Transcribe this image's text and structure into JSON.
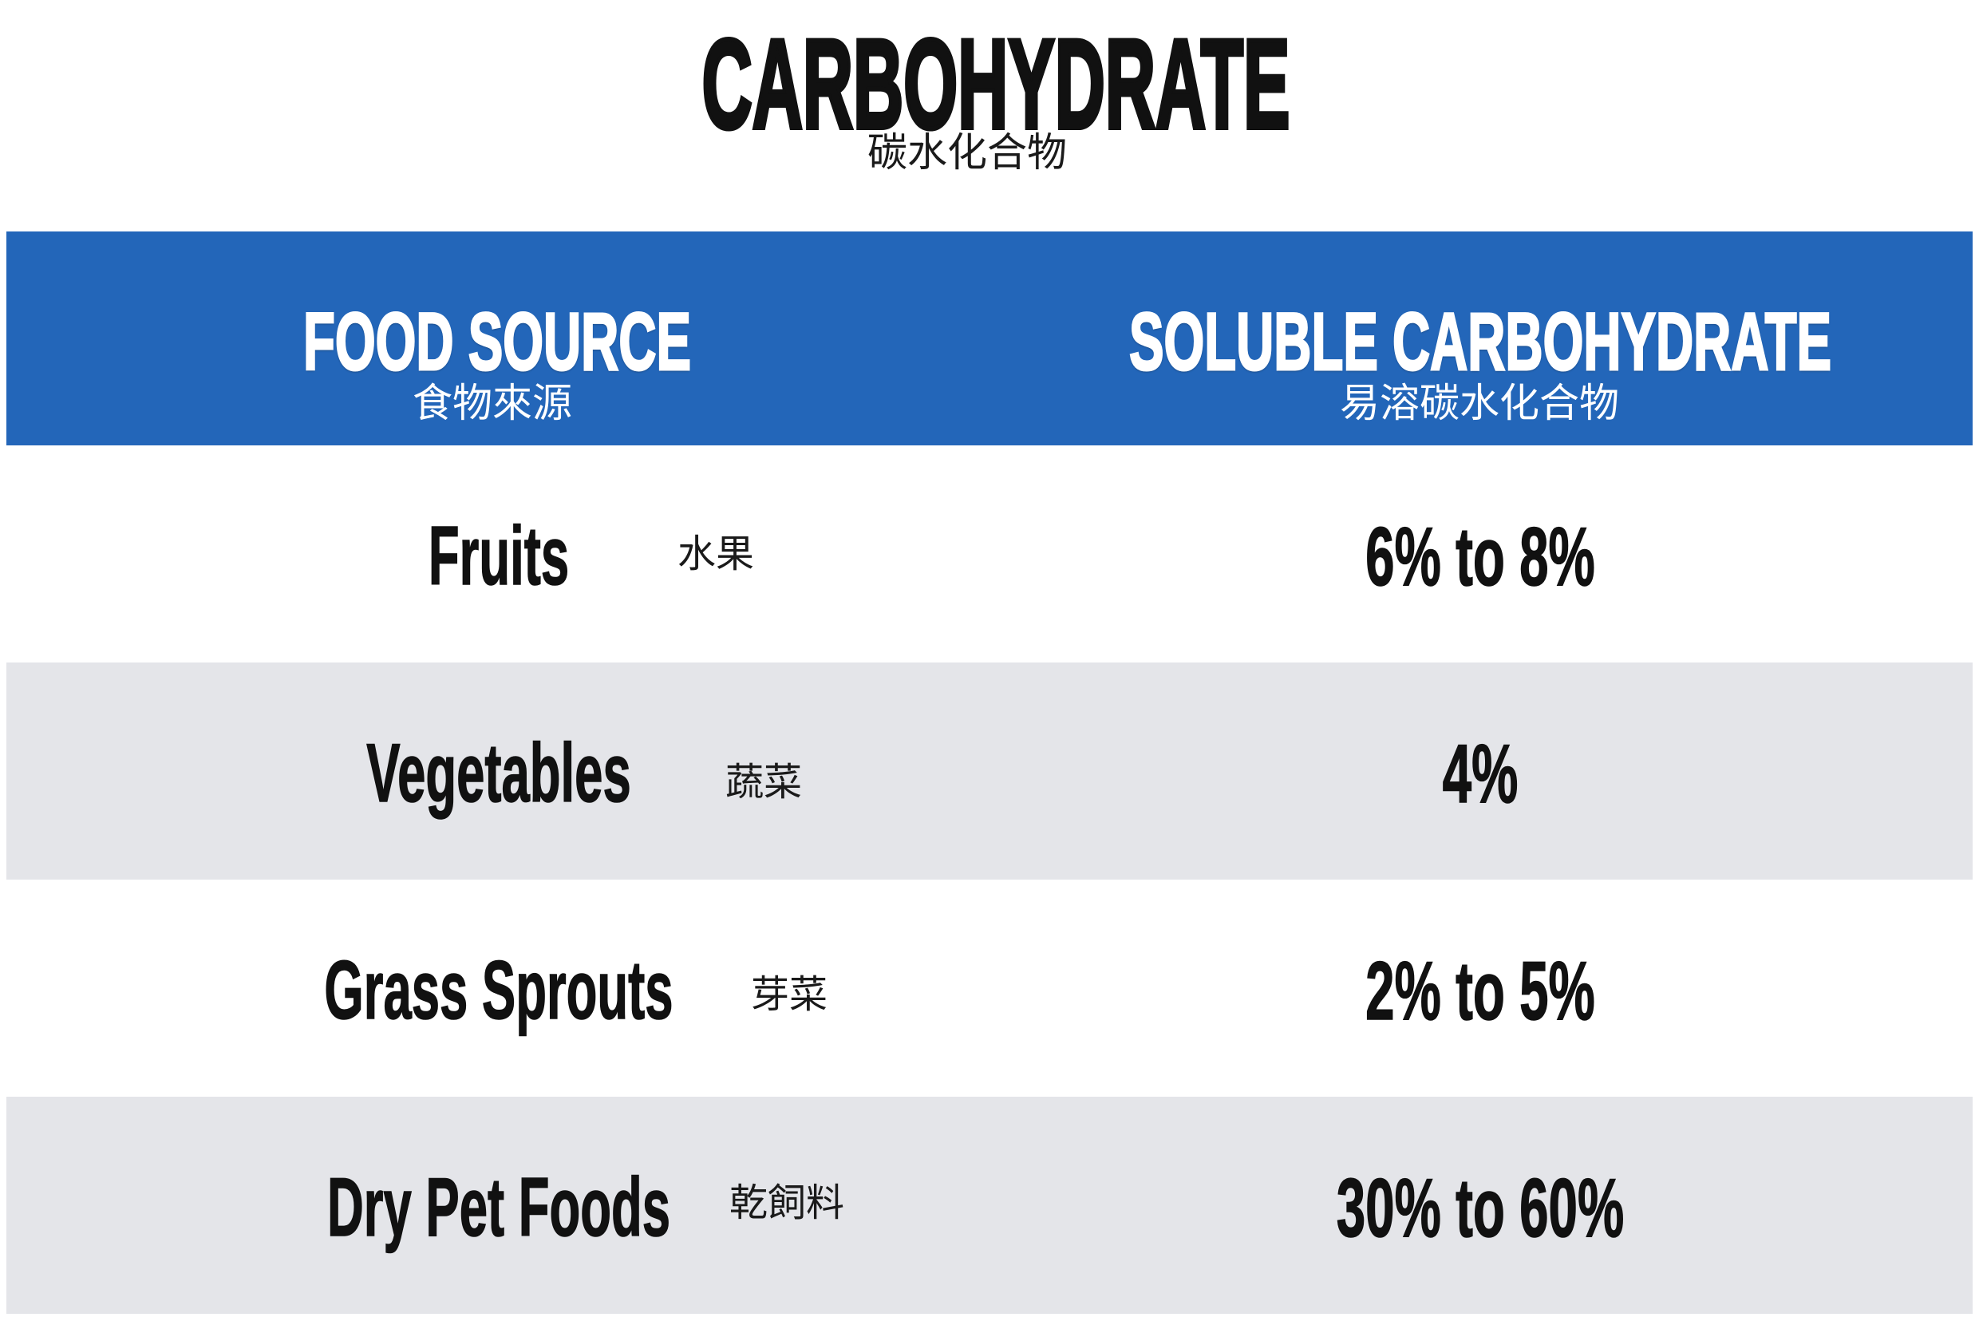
{
  "title": "CARBOHYDRATE",
  "title_zh": "碳水化合物",
  "header": {
    "food_source": "FOOD SOURCE",
    "food_source_zh": "食物來源",
    "soluble_carbohydrate": "SOLUBLE CARBOHYDRATE",
    "soluble_carbohydrate_zh": "易溶碳水化合物"
  },
  "rows": [
    {
      "food": "Fruits",
      "food_zh": "水果",
      "value": "6% to 8%"
    },
    {
      "food": "Vegetables",
      "food_zh": "蔬菜",
      "value": "4%"
    },
    {
      "food": "Grass Sprouts",
      "food_zh": "芽菜",
      "value": "2% to 5%"
    },
    {
      "food": "Dry Pet Foods",
      "food_zh": "乾飼料",
      "value": "30% to 60%"
    }
  ],
  "colors": {
    "header_bg": "#2366B9",
    "row_alt_bg": "#E4E5E9",
    "text": "#111111",
    "header_text": "#FFFFFF"
  }
}
